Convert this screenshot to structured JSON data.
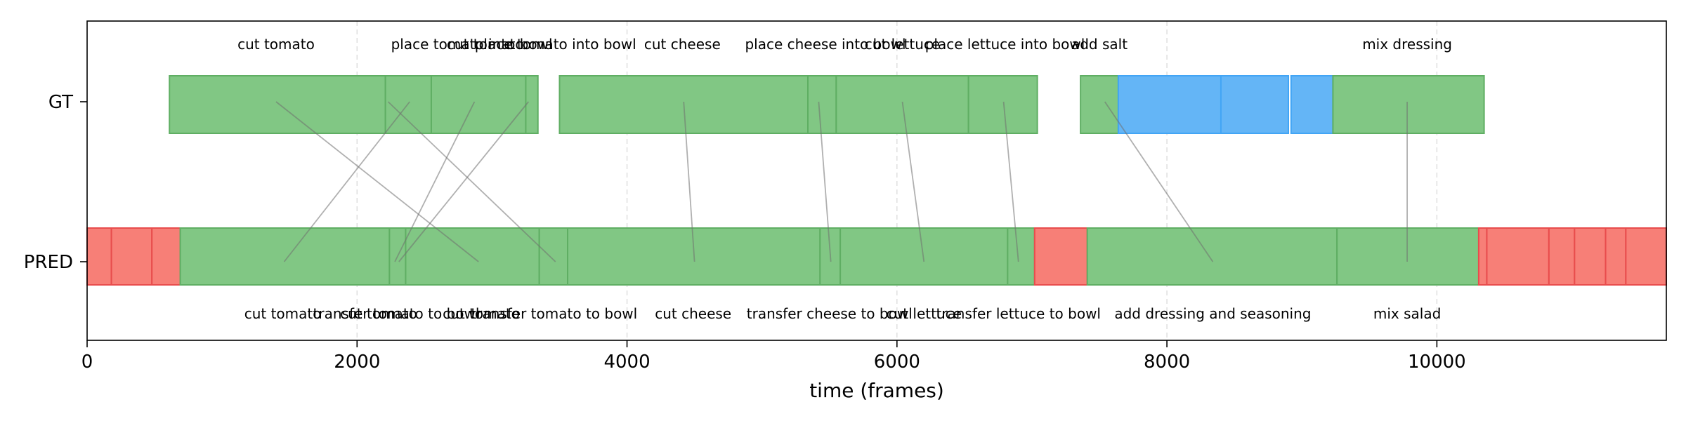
{
  "chart_data": {
    "type": "timeline",
    "xlabel": "time (frames)",
    "xlim": [
      0,
      11700
    ],
    "xticks": [
      0,
      2000,
      4000,
      6000,
      8000,
      10000
    ],
    "rows": [
      "GT",
      "PRED"
    ],
    "grid": "vertical-dashed",
    "colors": {
      "match": "#81c784",
      "match_edge": "#5fae63",
      "blue": "#64b5f6",
      "blue_edge": "#42a5f5",
      "miss": "#f77f77",
      "miss_edge": "#e84c4c",
      "link": "#b3b3b3",
      "grid": "#dddddd"
    },
    "gt_segments": [
      {
        "start": 610,
        "end": 2210,
        "kind": "match"
      },
      {
        "start": 2210,
        "end": 2550,
        "kind": "match"
      },
      {
        "start": 2550,
        "end": 3250,
        "kind": "match"
      },
      {
        "start": 3250,
        "end": 3340,
        "kind": "match"
      },
      {
        "start": 3500,
        "end": 5340,
        "kind": "match"
      },
      {
        "start": 5340,
        "end": 5550,
        "kind": "match"
      },
      {
        "start": 5550,
        "end": 6530,
        "kind": "match"
      },
      {
        "start": 6530,
        "end": 7040,
        "kind": "match"
      },
      {
        "start": 7360,
        "end": 7640,
        "kind": "match"
      },
      {
        "start": 7640,
        "end": 8400,
        "kind": "blue"
      },
      {
        "start": 8400,
        "end": 8900,
        "kind": "blue"
      },
      {
        "start": 8920,
        "end": 9230,
        "kind": "blue"
      },
      {
        "start": 9230,
        "end": 10350,
        "kind": "match"
      }
    ],
    "pred_segments": [
      {
        "start": 0,
        "end": 180,
        "kind": "miss"
      },
      {
        "start": 180,
        "end": 480,
        "kind": "miss"
      },
      {
        "start": 480,
        "end": 690,
        "kind": "miss"
      },
      {
        "start": 690,
        "end": 2240,
        "kind": "match"
      },
      {
        "start": 2240,
        "end": 2360,
        "kind": "match"
      },
      {
        "start": 2360,
        "end": 3350,
        "kind": "match"
      },
      {
        "start": 3350,
        "end": 3560,
        "kind": "match"
      },
      {
        "start": 3560,
        "end": 5430,
        "kind": "match"
      },
      {
        "start": 5430,
        "end": 5580,
        "kind": "match"
      },
      {
        "start": 5580,
        "end": 6820,
        "kind": "match"
      },
      {
        "start": 6820,
        "end": 7020,
        "kind": "match"
      },
      {
        "start": 7020,
        "end": 7410,
        "kind": "miss"
      },
      {
        "start": 7410,
        "end": 9260,
        "kind": "match"
      },
      {
        "start": 9260,
        "end": 10310,
        "kind": "match"
      },
      {
        "start": 10310,
        "end": 10370,
        "kind": "miss"
      },
      {
        "start": 10370,
        "end": 10830,
        "kind": "miss"
      },
      {
        "start": 10830,
        "end": 11020,
        "kind": "miss"
      },
      {
        "start": 11020,
        "end": 11250,
        "kind": "miss"
      },
      {
        "start": 11250,
        "end": 11400,
        "kind": "miss"
      },
      {
        "start": 11400,
        "end": 11700,
        "kind": "miss"
      }
    ],
    "gt_labels": [
      {
        "x": 1400,
        "text": "cut tomato"
      },
      {
        "x": 2850,
        "text": "place tomato into bowl"
      },
      {
        "x": 2950,
        "text": "cut tomato"
      },
      {
        "x": 3470,
        "text": "place tomato into bowl"
      },
      {
        "x": 4410,
        "text": "cut cheese"
      },
      {
        "x": 5470,
        "text": "place cheese into bowl"
      },
      {
        "x": 6040,
        "text": "cut lettuce"
      },
      {
        "x": 6800,
        "text": "place lettuce into bowl"
      },
      {
        "x": 7500,
        "text": "add salt"
      },
      {
        "x": 9780,
        "text": "mix dressing"
      }
    ],
    "pred_labels": [
      {
        "x": 1450,
        "text": "cut tomato"
      },
      {
        "x": 2160,
        "text": "cut tomato"
      },
      {
        "x": 2290,
        "text": "transfer tomato to bowl"
      },
      {
        "x": 2920,
        "text": "cut tomato"
      },
      {
        "x": 3460,
        "text": "transfer tomato to bowl"
      },
      {
        "x": 4490,
        "text": "cut cheese"
      },
      {
        "x": 5500,
        "text": "transfer cheese to bowl"
      },
      {
        "x": 6200,
        "text": "cut lettuce"
      },
      {
        "x": 6900,
        "text": "transfer lettuce to bowl"
      },
      {
        "x": 8340,
        "text": "add dressing and seasoning"
      },
      {
        "x": 9780,
        "text": "mix salad"
      }
    ],
    "links": [
      [
        1400,
        2900
      ],
      [
        2390,
        1460
      ],
      [
        2870,
        2280
      ],
      [
        3270,
        2310
      ],
      [
        2230,
        3470
      ],
      [
        4420,
        4500
      ],
      [
        5420,
        5510
      ],
      [
        6040,
        6200
      ],
      [
        6790,
        6900
      ],
      [
        7540,
        8340
      ],
      [
        9780,
        9780
      ]
    ]
  }
}
